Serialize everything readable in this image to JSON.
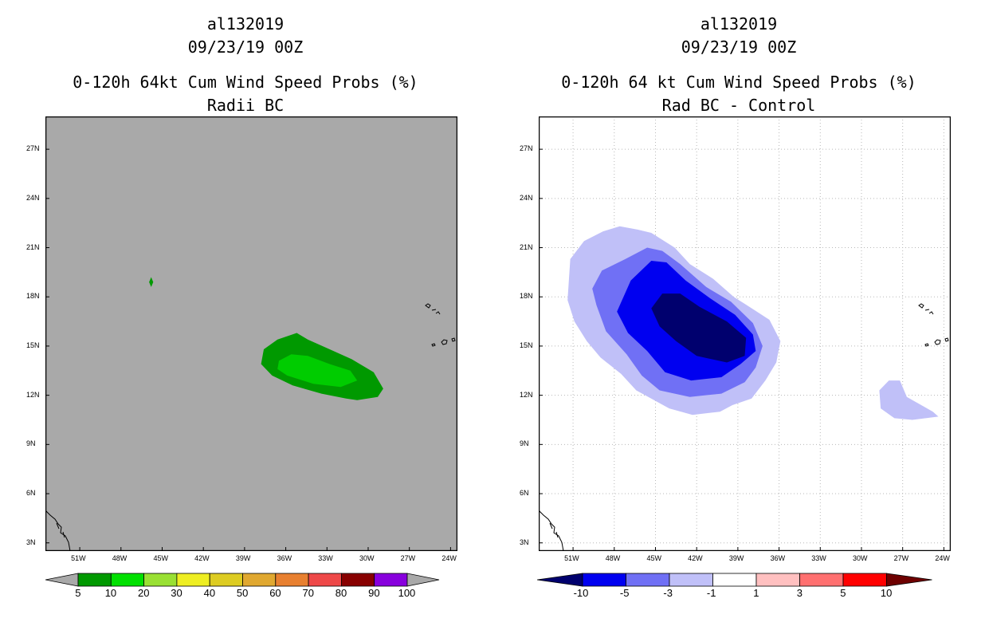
{
  "colors": {
    "left_background": "#a9a9a9",
    "prob_10_20": "#00cc00",
    "prob_5_10": "#009900",
    "diff_lt_minus10": "#00006e",
    "diff_minus10_minus5": "#0000f0",
    "diff_minus5_minus3": "#7070f5",
    "diff_minus3_minus1": "#c0c0f8"
  },
  "chart_data": [
    {
      "type": "filled-contour-map",
      "title_lines": [
        "al132019",
        "09/23/19 00Z",
        "0-120h 64kt Cum Wind Speed Probs (%)",
        "Radii BC"
      ],
      "x_ticks": [
        "51W",
        "48W",
        "45W",
        "42W",
        "39W",
        "36W",
        "33W",
        "30W",
        "27W",
        "24W"
      ],
      "y_ticks": [
        "27N",
        "24N",
        "21N",
        "18N",
        "15N",
        "12N",
        "9N",
        "6N",
        "3N"
      ],
      "xlim": [
        -53.5,
        -23.5
      ],
      "ylim": [
        2.5,
        29
      ],
      "grid": false,
      "colorbar": {
        "labels": [
          "5",
          "10",
          "20",
          "30",
          "40",
          "50",
          "60",
          "70",
          "80",
          "90",
          "100"
        ],
        "colors": [
          "#009900",
          "#00e000",
          "#99e033",
          "#eeee22",
          "#ddcc22",
          "#e0a830",
          "#e88030",
          "#ee4848",
          "#880000",
          "#8800dd"
        ],
        "end_color": "#a9a9a9"
      },
      "regions": [
        {
          "level": "5-10",
          "name": "wind-prob-5-10-main",
          "lonlat": [
            [
              -37.6,
              14.8
            ],
            [
              -36.6,
              15.4
            ],
            [
              -35.2,
              15.8
            ],
            [
              -34.4,
              15.4
            ],
            [
              -32.8,
              14.8
            ],
            [
              -31.2,
              14.2
            ],
            [
              -29.6,
              13.4
            ],
            [
              -28.9,
              12.4
            ],
            [
              -29.3,
              11.9
            ],
            [
              -30.8,
              11.7
            ],
            [
              -31.6,
              11.8
            ],
            [
              -33.4,
              12.1
            ],
            [
              -35.5,
              12.6
            ],
            [
              -37.0,
              13.2
            ],
            [
              -37.8,
              13.9
            ]
          ]
        },
        {
          "level": "10-20",
          "name": "wind-prob-10-20-core",
          "lonlat": [
            [
              -36.5,
              14.1
            ],
            [
              -35.6,
              14.5
            ],
            [
              -34.4,
              14.4
            ],
            [
              -32.8,
              13.9
            ],
            [
              -31.3,
              13.5
            ],
            [
              -30.8,
              12.9
            ],
            [
              -32.0,
              12.5
            ],
            [
              -34.0,
              12.7
            ],
            [
              -35.9,
              13.2
            ],
            [
              -36.6,
              13.6
            ]
          ]
        },
        {
          "level": "5-10",
          "name": "wind-prob-5-10-blip",
          "lonlat": [
            [
              -45.8,
              19.2
            ],
            [
              -45.65,
              18.9
            ],
            [
              -45.8,
              18.6
            ],
            [
              -45.95,
              18.9
            ]
          ]
        }
      ]
    },
    {
      "type": "filled-contour-map",
      "title_lines": [
        "al132019",
        "09/23/19 00Z",
        "0-120h 64 kt Cum Wind Speed Probs (%)",
        "Rad BC - Control"
      ],
      "x_ticks": [
        "51W",
        "48W",
        "45W",
        "42W",
        "39W",
        "36W",
        "33W",
        "30W",
        "27W",
        "24W"
      ],
      "y_ticks": [
        "27N",
        "24N",
        "21N",
        "18N",
        "15N",
        "12N",
        "9N",
        "6N",
        "3N"
      ],
      "xlim": [
        -53.5,
        -23.5
      ],
      "ylim": [
        2.5,
        29
      ],
      "grid": true,
      "colorbar": {
        "labels": [
          "-10",
          "-5",
          "-3",
          "-1",
          "1",
          "3",
          "5",
          "10"
        ],
        "colors": [
          "#0000f0",
          "#7070f5",
          "#c0c0f8",
          "#ffffff",
          "#ffc0c0",
          "#ff7070",
          "#ff0000"
        ],
        "low_end_color": "#00006e",
        "high_end_color": "#6e0000"
      },
      "regions": [
        {
          "level": "-3 to -1",
          "name": "diff-band-outer",
          "lonlat": [
            [
              -51.2,
              20.3
            ],
            [
              -50.2,
              21.4
            ],
            [
              -48.8,
              22.0
            ],
            [
              -47.6,
              22.3
            ],
            [
              -46.3,
              22.1
            ],
            [
              -45.3,
              21.9
            ],
            [
              -43.6,
              21.0
            ],
            [
              -42.5,
              20.0
            ],
            [
              -40.8,
              19.1
            ],
            [
              -39.3,
              18.0
            ],
            [
              -37.8,
              17.2
            ],
            [
              -36.7,
              16.6
            ],
            [
              -35.9,
              15.3
            ],
            [
              -36.2,
              14.0
            ],
            [
              -37.0,
              12.9
            ],
            [
              -38.0,
              11.8
            ],
            [
              -39.4,
              11.4
            ],
            [
              -40.3,
              11.0
            ],
            [
              -42.3,
              10.8
            ],
            [
              -44.0,
              11.2
            ],
            [
              -45.1,
              11.7
            ],
            [
              -46.4,
              12.3
            ],
            [
              -47.5,
              13.3
            ],
            [
              -49.0,
              14.3
            ],
            [
              -50.0,
              15.3
            ],
            [
              -50.9,
              16.5
            ],
            [
              -51.4,
              17.8
            ]
          ]
        },
        {
          "level": "-5 to -3",
          "name": "diff-band-middle",
          "lonlat": [
            [
              -48.9,
              19.6
            ],
            [
              -47.2,
              20.3
            ],
            [
              -45.6,
              21.0
            ],
            [
              -44.5,
              20.8
            ],
            [
              -43.2,
              20.0
            ],
            [
              -41.3,
              18.6
            ],
            [
              -39.5,
              17.7
            ],
            [
              -37.9,
              16.4
            ],
            [
              -37.2,
              15.0
            ],
            [
              -37.7,
              13.7
            ],
            [
              -38.5,
              12.8
            ],
            [
              -40.2,
              12.1
            ],
            [
              -42.5,
              11.9
            ],
            [
              -44.7,
              12.3
            ],
            [
              -46.0,
              13.2
            ],
            [
              -47.1,
              14.5
            ],
            [
              -48.6,
              15.9
            ],
            [
              -49.3,
              17.5
            ],
            [
              -49.6,
              18.5
            ]
          ]
        },
        {
          "level": "-10 to -5",
          "name": "diff-band-inner",
          "lonlat": [
            [
              -46.8,
              19.0
            ],
            [
              -45.3,
              20.2
            ],
            [
              -44.2,
              20.1
            ],
            [
              -42.8,
              19.0
            ],
            [
              -41.0,
              17.9
            ],
            [
              -39.2,
              16.9
            ],
            [
              -37.9,
              15.7
            ],
            [
              -37.7,
              14.7
            ],
            [
              -38.8,
              13.9
            ],
            [
              -40.2,
              13.1
            ],
            [
              -42.4,
              12.9
            ],
            [
              -44.3,
              13.4
            ],
            [
              -45.6,
              14.7
            ],
            [
              -47.0,
              15.8
            ],
            [
              -47.8,
              17.1
            ]
          ]
        },
        {
          "level": "< -10",
          "name": "diff-band-core",
          "lonlat": [
            [
              -45.3,
              17.3
            ],
            [
              -44.5,
              18.2
            ],
            [
              -43.2,
              18.2
            ],
            [
              -41.8,
              17.4
            ],
            [
              -39.8,
              16.5
            ],
            [
              -38.4,
              15.5
            ],
            [
              -38.5,
              14.4
            ],
            [
              -39.8,
              14.0
            ],
            [
              -42.0,
              14.4
            ],
            [
              -43.5,
              15.3
            ],
            [
              -44.7,
              16.2
            ]
          ]
        },
        {
          "level": "-3 to -1",
          "name": "diff-band-east-patch",
          "lonlat": [
            [
              -28.7,
              12.3
            ],
            [
              -28.0,
              12.9
            ],
            [
              -27.2,
              12.9
            ],
            [
              -26.7,
              11.9
            ],
            [
              -24.8,
              11.0
            ],
            [
              -24.4,
              10.7
            ],
            [
              -26.3,
              10.5
            ],
            [
              -27.6,
              10.6
            ],
            [
              -28.6,
              11.2
            ]
          ]
        }
      ]
    }
  ]
}
